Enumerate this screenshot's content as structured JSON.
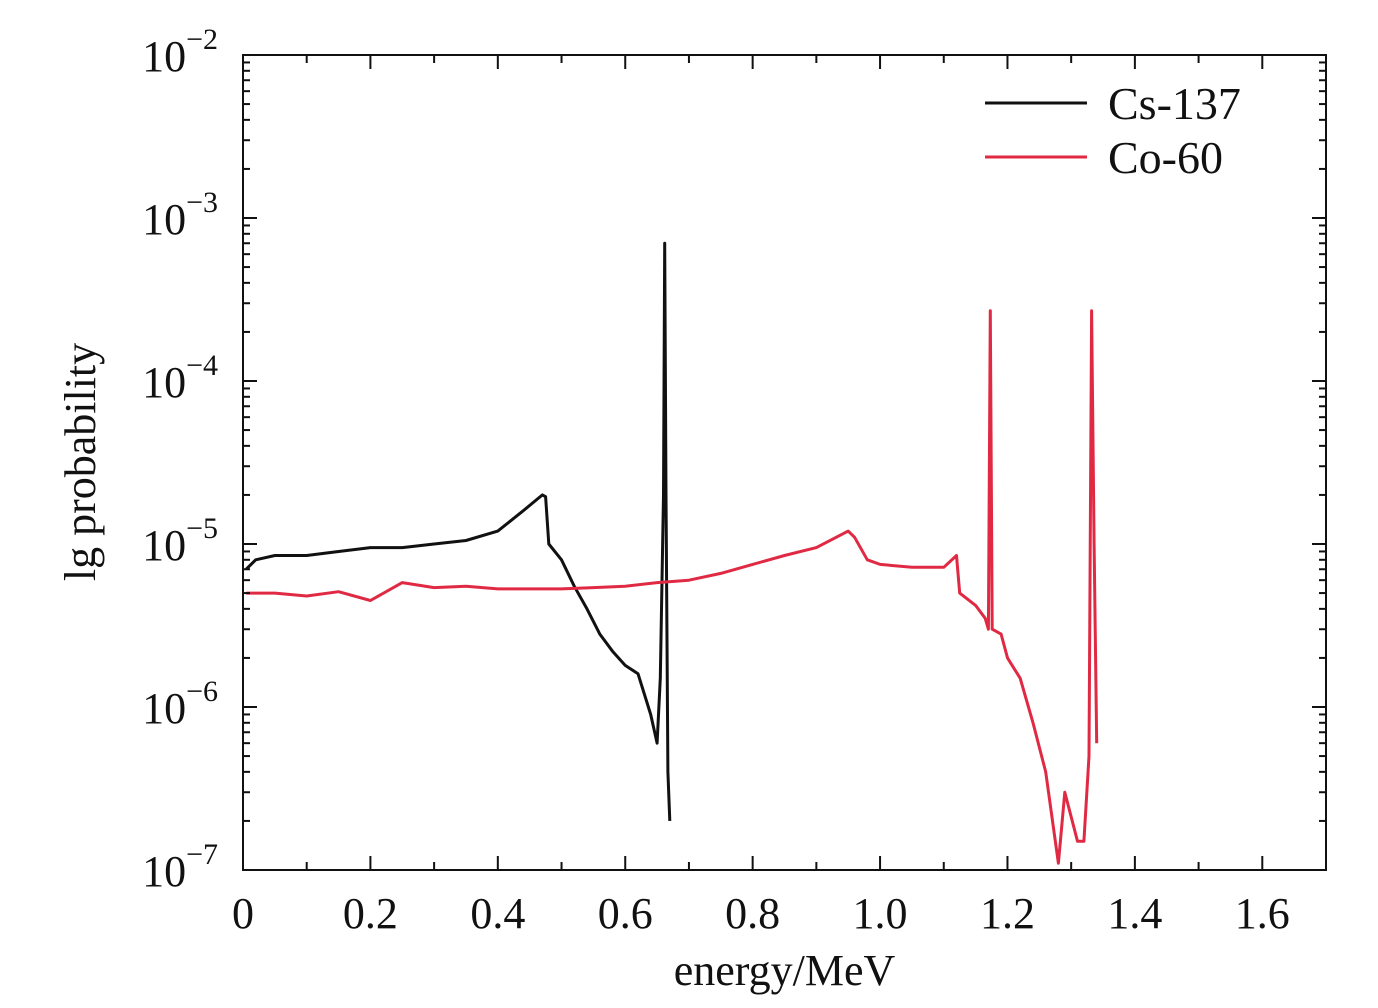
{
  "chart_data": {
    "type": "line",
    "title": "",
    "xlabel": "energy/MeV",
    "ylabel": "lg probability",
    "xlim": [
      0,
      1.7
    ],
    "ylim": [
      1e-07,
      0.01
    ],
    "yscale": "log",
    "grid": false,
    "legend_position": "top-right",
    "x_ticks": [
      "0",
      "0.2",
      "0.4",
      "0.6",
      "0.8",
      "1.0",
      "1.2",
      "1.4",
      "1.6"
    ],
    "y_ticks": [
      {
        "base": "10",
        "exp": "−7",
        "value": 1e-07
      },
      {
        "base": "10",
        "exp": "−6",
        "value": 1e-06
      },
      {
        "base": "10",
        "exp": "−5",
        "value": 1e-05
      },
      {
        "base": "10",
        "exp": "−4",
        "value": 0.0001
      },
      {
        "base": "10",
        "exp": "−3",
        "value": 0.001
      },
      {
        "base": "10",
        "exp": "−2",
        "value": 0.01
      }
    ],
    "series": [
      {
        "name": "Cs-137",
        "color": "#111111",
        "points": [
          [
            0.005,
            7e-06
          ],
          [
            0.02,
            8e-06
          ],
          [
            0.05,
            8.5e-06
          ],
          [
            0.1,
            8.5e-06
          ],
          [
            0.15,
            9e-06
          ],
          [
            0.2,
            9.5e-06
          ],
          [
            0.25,
            9.5e-06
          ],
          [
            0.3,
            1e-05
          ],
          [
            0.35,
            1.05e-05
          ],
          [
            0.4,
            1.2e-05
          ],
          [
            0.44,
            1.6e-05
          ],
          [
            0.47,
            2e-05
          ],
          [
            0.475,
            1.95e-05
          ],
          [
            0.48,
            1e-05
          ],
          [
            0.5,
            8e-06
          ],
          [
            0.52,
            5.5e-06
          ],
          [
            0.54,
            4e-06
          ],
          [
            0.56,
            2.8e-06
          ],
          [
            0.58,
            2.2e-06
          ],
          [
            0.6,
            1.8e-06
          ],
          [
            0.62,
            1.6e-06
          ],
          [
            0.64,
            9e-07
          ],
          [
            0.65,
            6e-07
          ],
          [
            0.655,
            1.5e-06
          ],
          [
            0.66,
            2e-05
          ],
          [
            0.662,
            0.0007
          ],
          [
            0.664,
            2e-05
          ],
          [
            0.667,
            4e-07
          ],
          [
            0.67,
            2e-07
          ]
        ]
      },
      {
        "name": "Co-60",
        "color": "#e02a44",
        "points": [
          [
            0.005,
            5e-06
          ],
          [
            0.05,
            5e-06
          ],
          [
            0.1,
            4.8e-06
          ],
          [
            0.15,
            5.1e-06
          ],
          [
            0.2,
            4.5e-06
          ],
          [
            0.25,
            5.8e-06
          ],
          [
            0.3,
            5.4e-06
          ],
          [
            0.35,
            5.5e-06
          ],
          [
            0.4,
            5.3e-06
          ],
          [
            0.45,
            5.3e-06
          ],
          [
            0.5,
            5.3e-06
          ],
          [
            0.55,
            5.4e-06
          ],
          [
            0.6,
            5.5e-06
          ],
          [
            0.65,
            5.8e-06
          ],
          [
            0.7,
            6e-06
          ],
          [
            0.75,
            6.6e-06
          ],
          [
            0.8,
            7.5e-06
          ],
          [
            0.85,
            8.5e-06
          ],
          [
            0.9,
            9.5e-06
          ],
          [
            0.95,
            1.2e-05
          ],
          [
            0.96,
            1.1e-05
          ],
          [
            0.98,
            8e-06
          ],
          [
            1.0,
            7.5e-06
          ],
          [
            1.05,
            7.2e-06
          ],
          [
            1.1,
            7.2e-06
          ],
          [
            1.12,
            8.5e-06
          ],
          [
            1.125,
            5e-06
          ],
          [
            1.15,
            4.2e-06
          ],
          [
            1.165,
            3.5e-06
          ],
          [
            1.17,
            3e-06
          ],
          [
            1.173,
            0.00027
          ],
          [
            1.176,
            3e-06
          ],
          [
            1.19,
            2.8e-06
          ],
          [
            1.2,
            2e-06
          ],
          [
            1.22,
            1.5e-06
          ],
          [
            1.24,
            8e-07
          ],
          [
            1.26,
            4e-07
          ],
          [
            1.28,
            1.1e-07
          ],
          [
            1.29,
            3e-07
          ],
          [
            1.31,
            1.5e-07
          ],
          [
            1.32,
            1.5e-07
          ],
          [
            1.328,
            5e-07
          ],
          [
            1.332,
            0.00027
          ],
          [
            1.336,
            1e-05
          ],
          [
            1.34,
            6e-07
          ]
        ]
      }
    ]
  }
}
